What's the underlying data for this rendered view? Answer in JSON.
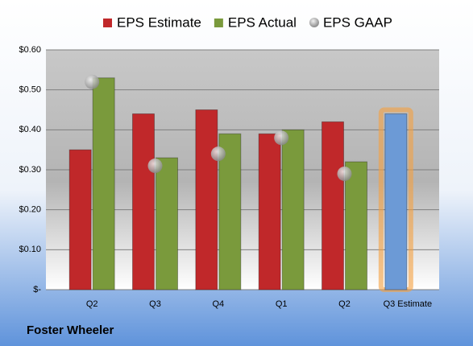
{
  "chart_data": {
    "type": "bar",
    "footer": "Foster Wheeler",
    "categories": [
      "Q2",
      "Q3",
      "Q4",
      "Q1",
      "Q2",
      "Q3 Estimate"
    ],
    "series": [
      {
        "name": "EPS Estimate",
        "color": "#c0282a",
        "colors": [
          "#c0282a",
          "#c0282a",
          "#c0282a",
          "#c0282a",
          "#c0282a",
          "#6c9ad6"
        ],
        "values": [
          0.35,
          0.44,
          0.45,
          0.39,
          0.42,
          0.44
        ]
      },
      {
        "name": "EPS Actual",
        "color": "#7a9a3c",
        "values": [
          0.53,
          0.33,
          0.39,
          0.4,
          0.32,
          null
        ]
      },
      {
        "name": "EPS GAAP",
        "color": "#a0a0a0",
        "marker": "circle",
        "values": [
          0.52,
          0.31,
          0.34,
          0.38,
          0.29,
          null
        ]
      }
    ],
    "ylim": [
      0,
      0.6
    ],
    "yticks": [
      {
        "value": 0,
        "label": "$-"
      },
      {
        "value": 0.1,
        "label": "$0.10"
      },
      {
        "value": 0.2,
        "label": "$0.20"
      },
      {
        "value": 0.3,
        "label": "$0.30"
      },
      {
        "value": 0.4,
        "label": "$0.40"
      },
      {
        "value": 0.5,
        "label": "$0.50"
      },
      {
        "value": 0.6,
        "label": "$0.60"
      }
    ],
    "grid": true
  }
}
